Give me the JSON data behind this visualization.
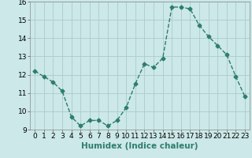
{
  "x": [
    0,
    1,
    2,
    3,
    4,
    5,
    6,
    7,
    8,
    9,
    10,
    11,
    12,
    13,
    14,
    15,
    16,
    17,
    18,
    19,
    20,
    21,
    22,
    23
  ],
  "y": [
    12.2,
    11.9,
    11.6,
    11.1,
    9.7,
    9.2,
    9.5,
    9.5,
    9.2,
    9.5,
    10.2,
    11.5,
    12.6,
    12.4,
    12.9,
    15.7,
    15.7,
    15.6,
    14.7,
    14.1,
    13.6,
    13.1,
    11.9,
    10.8
  ],
  "line_color": "#2e7d6e",
  "marker": "D",
  "marker_size": 2.5,
  "bg_color": "#cce8e8",
  "grid_color": "#aacccc",
  "xlabel": "Humidex (Indice chaleur)",
  "ylim": [
    9,
    16
  ],
  "xlim": [
    -0.5,
    23.5
  ],
  "yticks": [
    9,
    10,
    11,
    12,
    13,
    14,
    15,
    16
  ],
  "xticks": [
    0,
    1,
    2,
    3,
    4,
    5,
    6,
    7,
    8,
    9,
    10,
    11,
    12,
    13,
    14,
    15,
    16,
    17,
    18,
    19,
    20,
    21,
    22,
    23
  ],
  "xlabel_fontsize": 7.5,
  "tick_fontsize": 6.5,
  "line_width": 1.0
}
